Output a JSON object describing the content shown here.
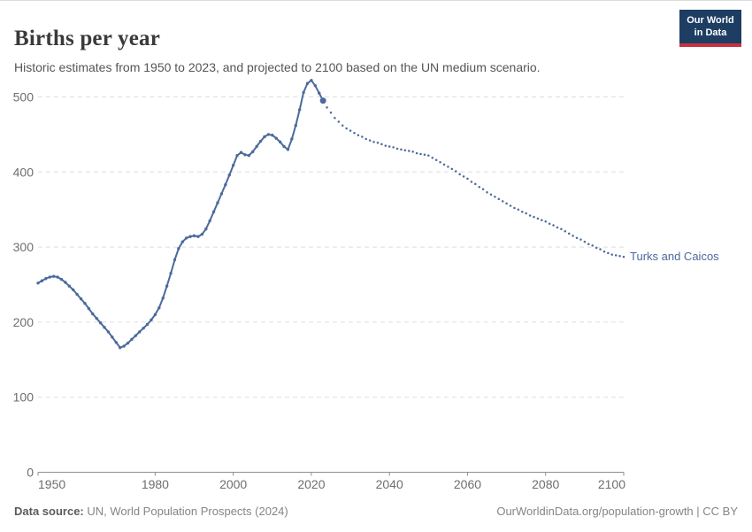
{
  "header": {
    "title": "Births per year",
    "subtitle": "Historic estimates from 1950 to 2023, and projected to 2100 based on the UN medium scenario.",
    "logo": {
      "line1": "Our World",
      "line2": "in Data"
    }
  },
  "footer": {
    "source_label": "Data source:",
    "source_text": " UN, World Population Prospects (2024)",
    "credit": "OurWorldinData.org/population-growth | CC BY"
  },
  "chart_data": {
    "type": "line",
    "title": "Births per year",
    "entity_label": "Turks and Caicos",
    "xlim": [
      1950,
      2100
    ],
    "ylim": [
      0,
      530
    ],
    "grid": true,
    "legend_position": "end-of-line-label",
    "x_ticks": [
      1950,
      1980,
      2000,
      2020,
      2040,
      2060,
      2080,
      2100
    ],
    "y_ticks": [
      0,
      100,
      200,
      300,
      400,
      500
    ],
    "colors": {
      "line": "#4c6a9c",
      "label": "#4c6a9c",
      "logo_bg": "#1d3d63",
      "logo_stripe": "#c7313f",
      "grid": "#dedede",
      "axis": "#8f8f8f",
      "tick_text": "#6e6e6e"
    },
    "series": [
      {
        "name": "historic estimates (1950-2023)",
        "style": "solid",
        "x": [
          1950,
          1951,
          1952,
          1953,
          1954,
          1955,
          1956,
          1957,
          1958,
          1959,
          1960,
          1961,
          1962,
          1963,
          1964,
          1965,
          1966,
          1967,
          1968,
          1969,
          1970,
          1971,
          1972,
          1973,
          1974,
          1975,
          1976,
          1977,
          1978,
          1979,
          1980,
          1981,
          1982,
          1983,
          1984,
          1985,
          1986,
          1987,
          1988,
          1989,
          1990,
          1991,
          1992,
          1993,
          1994,
          1995,
          1996,
          1997,
          1998,
          1999,
          2000,
          2001,
          2002,
          2003,
          2004,
          2005,
          2006,
          2007,
          2008,
          2009,
          2010,
          2011,
          2012,
          2013,
          2014,
          2015,
          2016,
          2017,
          2018,
          2019,
          2020,
          2021,
          2022,
          2023
        ],
        "values": [
          252,
          255,
          258,
          260,
          261,
          260,
          257,
          253,
          248,
          243,
          237,
          231,
          225,
          218,
          211,
          205,
          199,
          193,
          187,
          180,
          173,
          166,
          168,
          172,
          177,
          182,
          187,
          192,
          197,
          203,
          210,
          219,
          232,
          248,
          265,
          283,
          298,
          307,
          312,
          314,
          315,
          314,
          317,
          324,
          335,
          347,
          359,
          371,
          383,
          396,
          409,
          422,
          426,
          423,
          422,
          427,
          434,
          441,
          447,
          450,
          449,
          445,
          440,
          434,
          430,
          444,
          462,
          483,
          506,
          518,
          522,
          515,
          505,
          495
        ]
      },
      {
        "name": "UN medium scenario projection (2024-2100)",
        "style": "dotted",
        "x": [
          2024,
          2025,
          2026,
          2027,
          2028,
          2029,
          2030,
          2031,
          2032,
          2033,
          2034,
          2035,
          2036,
          2037,
          2038,
          2039,
          2040,
          2041,
          2042,
          2043,
          2044,
          2045,
          2046,
          2047,
          2048,
          2049,
          2050,
          2051,
          2052,
          2053,
          2054,
          2055,
          2056,
          2057,
          2058,
          2059,
          2060,
          2061,
          2062,
          2063,
          2064,
          2065,
          2066,
          2067,
          2068,
          2069,
          2070,
          2071,
          2072,
          2073,
          2074,
          2075,
          2076,
          2077,
          2078,
          2079,
          2080,
          2081,
          2082,
          2083,
          2084,
          2085,
          2086,
          2087,
          2088,
          2089,
          2090,
          2091,
          2092,
          2093,
          2094,
          2095,
          2096,
          2097,
          2098,
          2099,
          2100
        ],
        "values": [
          486,
          479,
          472,
          467,
          462,
          458,
          455,
          452,
          449,
          447,
          444,
          442,
          440,
          439,
          437,
          435,
          434,
          433,
          431,
          430,
          429,
          428,
          427,
          425,
          424,
          423,
          422,
          419,
          416,
          413,
          410,
          407,
          404,
          401,
          397,
          394,
          391,
          387,
          384,
          380,
          377,
          373,
          370,
          367,
          364,
          361,
          358,
          355,
          352,
          350,
          347,
          345,
          342,
          340,
          338,
          336,
          334,
          331,
          329,
          326,
          324,
          321,
          318,
          315,
          312,
          310,
          307,
          304,
          302,
          299,
          297,
          294,
          292,
          290,
          289,
          288,
          287
        ]
      }
    ]
  }
}
